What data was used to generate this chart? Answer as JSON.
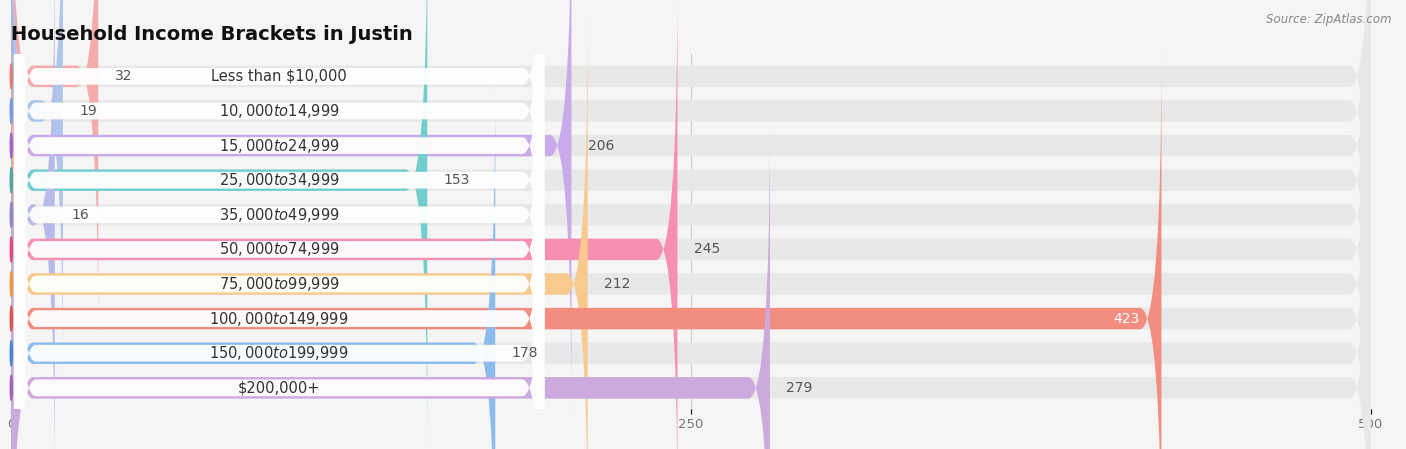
{
  "title": "Household Income Brackets in Justin",
  "source": "Source: ZipAtlas.com",
  "categories": [
    "Less than $10,000",
    "$10,000 to $14,999",
    "$15,000 to $24,999",
    "$25,000 to $34,999",
    "$35,000 to $49,999",
    "$50,000 to $74,999",
    "$75,000 to $99,999",
    "$100,000 to $149,999",
    "$150,000 to $199,999",
    "$200,000+"
  ],
  "values": [
    32,
    19,
    206,
    153,
    16,
    245,
    212,
    423,
    178,
    279
  ],
  "bar_colors": [
    "#f5abab",
    "#adc6ea",
    "#c9aaeb",
    "#72cece",
    "#b9baec",
    "#f790b0",
    "#f9ca8e",
    "#f28d80",
    "#8dbcec",
    "#ccaade"
  ],
  "bar_icon_colors": [
    "#ee7777",
    "#7799dd",
    "#9966cc",
    "#44aaaa",
    "#8888cc",
    "#ee4477",
    "#ee9933",
    "#dd5544",
    "#4488cc",
    "#9966bb"
  ],
  "xlim": [
    0,
    500
  ],
  "xticks": [
    0,
    250,
    500
  ],
  "background_color": "#f5f5f5",
  "bar_bg_color": "#e8e8e8",
  "title_fontsize": 14,
  "label_fontsize": 10.5,
  "value_fontsize": 10
}
